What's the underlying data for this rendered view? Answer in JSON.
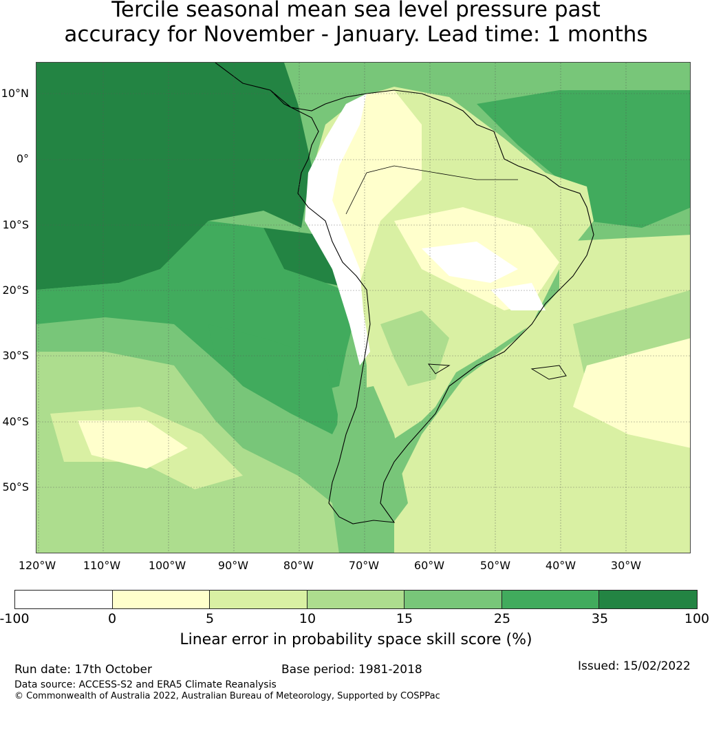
{
  "title_line1": "Tercile seasonal mean sea level pressure past",
  "title_line2": "accuracy for November - January. Lead time: 1 months",
  "map": {
    "lat_labels": [
      "10°N",
      "0°",
      "10°S",
      "20°S",
      "30°S",
      "40°S",
      "50°S"
    ],
    "lon_labels": [
      "120°W",
      "110°W",
      "100°W",
      "90°W",
      "80°W",
      "70°W",
      "60°W",
      "50°W",
      "40°W",
      "30°W"
    ],
    "extent": {
      "lon_min": -120.5,
      "lon_max": -20.5,
      "lat_min": -60,
      "lat_max": 15
    }
  },
  "colorbar": {
    "ticks": [
      "-100",
      "0",
      "5",
      "10",
      "15",
      "25",
      "35",
      "100"
    ],
    "colors": [
      "#ffffff",
      "#ffffcc",
      "#d9f0a3",
      "#addd8e",
      "#78c679",
      "#41ab5d",
      "#238443"
    ],
    "label": "Linear error in probability space skill score (%)"
  },
  "footer": {
    "run_date": "Run date: 17th October",
    "base_period": "Base period: 1981-2018",
    "issued": "Issued: 15/02/2022",
    "data_source": "Data source: ACCESS-S2 and ERA5 Climate Reanalysis",
    "copyright": "© Commonwealth of Australia 2022, Australian Bureau of Meteorology, Supported by COSPPac"
  }
}
